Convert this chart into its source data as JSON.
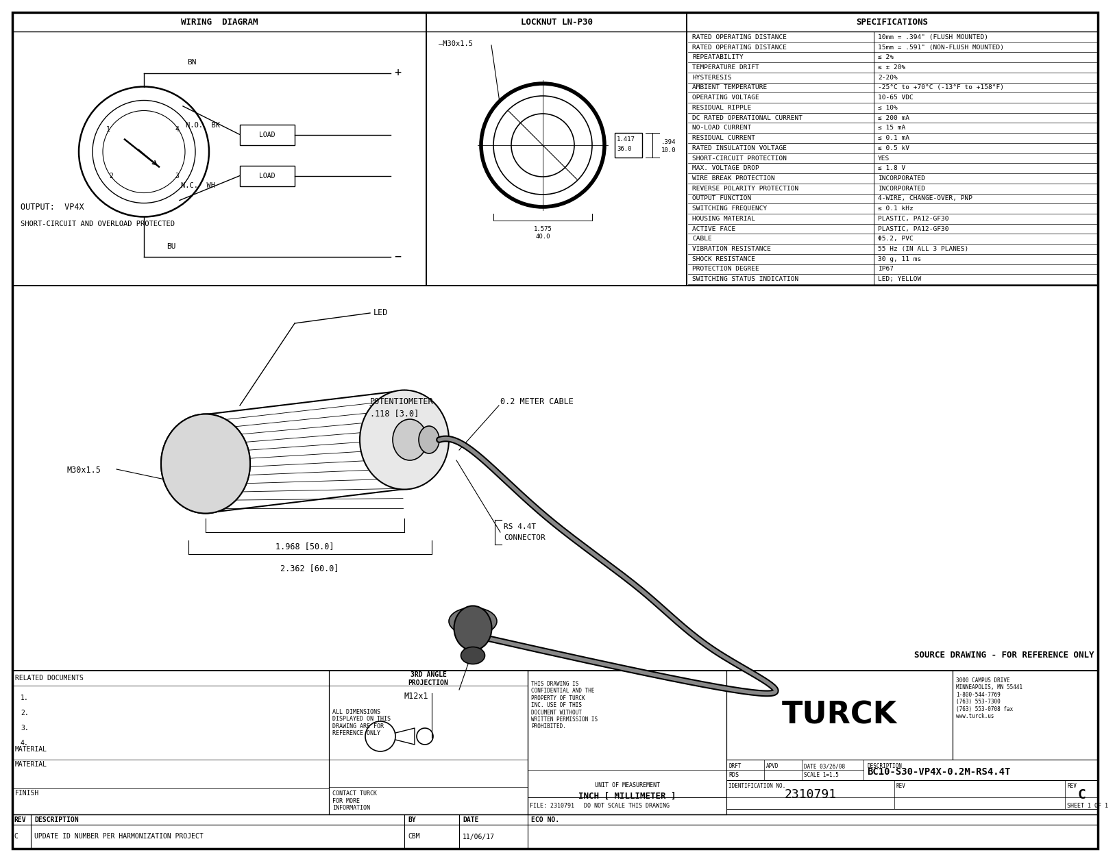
{
  "bg_color": "#ffffff",
  "specs_rows": [
    [
      "RATED OPERATING DISTANCE",
      "10mm = .394\" (FLUSH MOUNTED)"
    ],
    [
      "RATED OPERATING DISTANCE",
      "15mm = .591\" (NON-FLUSH MOUNTED)"
    ],
    [
      "REPEATABILITY",
      "≤ 2%"
    ],
    [
      "TEMPERATURE DRIFT",
      "≤ ± 20%"
    ],
    [
      "HYSTERESIS",
      "2-20%"
    ],
    [
      "AMBIENT TEMPERATURE",
      "-25°C to +70°C (-13°F to +158°F)"
    ],
    [
      "OPERATING VOLTAGE",
      "10-65 VDC"
    ],
    [
      "RESIDUAL RIPPLE",
      "≤ 10%"
    ],
    [
      "DC RATED OPERATIONAL CURRENT",
      "≤ 200 mA"
    ],
    [
      "NO-LOAD CURRENT",
      "≤ 15 mA"
    ],
    [
      "RESIDUAL CURRENT",
      "≤ 0.1 mA"
    ],
    [
      "RATED INSULATION VOLTAGE",
      "≤ 0.5 kV"
    ],
    [
      "SHORT-CIRCUIT PROTECTION",
      "YES"
    ],
    [
      "MAX. VOLTAGE DROP",
      "≤ 1.8 V"
    ],
    [
      "WIRE BREAK PROTECTION",
      "INCORPORATED"
    ],
    [
      "REVERSE POLARITY PROTECTION",
      "INCORPORATED"
    ],
    [
      "OUTPUT FUNCTION",
      "4-WIRE, CHANGE-OVER, PNP"
    ],
    [
      "SWITCHING FREQUENCY",
      "≤ 0.1 kHz"
    ],
    [
      "HOUSING MATERIAL",
      "PLASTIC, PA12-GF30"
    ],
    [
      "ACTIVE FACE",
      "PLASTIC, PA12-GF30"
    ],
    [
      "CABLE",
      "Φ5.2, PVC"
    ],
    [
      "VIBRATION RESISTANCE",
      "55 Hz (IN ALL 3 PLANES)"
    ],
    [
      "SHOCK RESISTANCE",
      "30 g, 11 ms"
    ],
    [
      "PROTECTION DEGREE",
      "IP67"
    ],
    [
      "SWITCHING STATUS INDICATION",
      "LED; YELLOW"
    ]
  ],
  "title_block": {
    "related_docs_label": "RELATED DOCUMENTS",
    "related_docs_items": [
      "1.",
      "2.",
      "3.",
      "4."
    ],
    "material_label": "MATERIAL",
    "finish_label": "FINISH",
    "all_dims_label": "ALL DIMENSIONS\nDISPLAYED ON THIS\nDRAWING ARE FOR\nREFERENCE ONLY",
    "contact_label": "CONTACT TURCK\nFOR MORE\nINFORMATION",
    "unit_label": "UNIT OF MEASUREMENT",
    "unit_value": "INCH [ MILLIMETER ]",
    "drft_label": "DRFT",
    "drft_value": "RDS",
    "apvd_label": "APVD",
    "scale_label": "SCALE",
    "scale_value": "1=1.5",
    "date_label": "DATE",
    "date_value": "03/26/08",
    "description_label": "DESCRIPTION",
    "description_value": "BC10-S30-VP4X-0.2M-RS4.4T",
    "id_label": "IDENTIFICATION NO.",
    "id_value": "2310791",
    "rev_label": "REV",
    "rev_value": "C",
    "sheet_label": "SHEET 1 OF 1",
    "file_label": "FILE: 2310791",
    "do_not_scale": "DO NOT SCALE THIS DRAWING",
    "company": "3000 CAMPUS DRIVE\nMINNEAPOLIS, MN 55441\n1-800-544-7769\n(763) 553-7300\n(763) 553-0708 fax\nwww.turck.us",
    "conf_text": "THIS DRAWING IS\nCONFIDENTIAL AND THE\nPROPERTY OF TURCK\nINC. USE OF THIS\nDOCUMENT WITHOUT\nWRITTEN PERMISSION IS\nPROHIBITED.",
    "rev_row_desc": "UPDATE ID NUMBER PER HARMONIZATION PROJECT",
    "rev_row_by": "CBM",
    "rev_row_date": "11/06/17",
    "rev_row_c": "C",
    "rev_col_rev": "REV",
    "rev_col_desc": "DESCRIPTION",
    "rev_col_by": "BY",
    "rev_col_date": "DATE",
    "rev_col_eco": "ECO NO."
  }
}
